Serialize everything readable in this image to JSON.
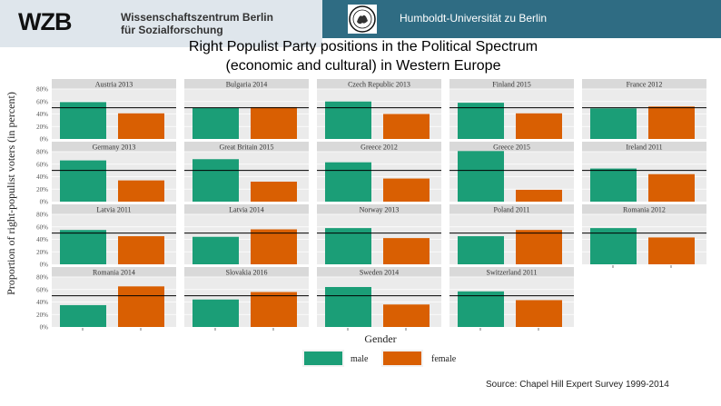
{
  "header": {
    "logo_text": "WZB",
    "institution_line1": "Wissenschaftszentrum Berlin",
    "institution_line2": "für Sozialforschung",
    "partner": "Humboldt-Universität zu Berlin"
  },
  "title": {
    "line1": "Right Populist Party positions in the Political Spectrum",
    "line2": "(economic and cultural) in Western Europe"
  },
  "source": "Source: Chapel Hill Expert Survey 1999-2014",
  "colors": {
    "male": "#1b9e77",
    "female": "#d95f02",
    "strip": "#d9d9d9",
    "panel": "#ebebeb"
  },
  "chart_data": {
    "type": "bar",
    "layout": "faceted grid",
    "xlabel": "Gender",
    "ylabel": "Proportion of right-populist voters (in percent)",
    "ylim": [
      0,
      80
    ],
    "yticks": [
      "0%",
      "20%",
      "40%",
      "60%",
      "80%"
    ],
    "legend": {
      "position": "bottom",
      "entries": [
        "male",
        "female"
      ]
    },
    "categories": [
      "male",
      "female"
    ],
    "panels": [
      {
        "title": "Austria 2013",
        "values": [
          59,
          41
        ],
        "ref": 50
      },
      {
        "title": "Bulgaria 2014",
        "values": [
          50,
          51
        ],
        "ref": 50
      },
      {
        "title": "Czech Republic 2013",
        "values": [
          60,
          40
        ],
        "ref": 50
      },
      {
        "title": "Finland 2015",
        "values": [
          58,
          41
        ],
        "ref": 50
      },
      {
        "title": "France 2012",
        "values": [
          49,
          52
        ],
        "ref": 50
      },
      {
        "title": "Germany 2013",
        "values": [
          66,
          34
        ],
        "ref": 50
      },
      {
        "title": "Great Britain 2015",
        "values": [
          68,
          32
        ],
        "ref": 50
      },
      {
        "title": "Greece 2012",
        "values": [
          63,
          37
        ],
        "ref": 50
      },
      {
        "title": "Greece 2015",
        "values": [
          81,
          19
        ],
        "ref": 50
      },
      {
        "title": "Ireland 2011",
        "values": [
          53,
          44
        ],
        "ref": 50
      },
      {
        "title": "Latvia 2011",
        "values": [
          55,
          45
        ],
        "ref": 50
      },
      {
        "title": "Latvia 2014",
        "values": [
          44,
          56
        ],
        "ref": 50
      },
      {
        "title": "Norway 2013",
        "values": [
          58,
          42
        ],
        "ref": 50
      },
      {
        "title": "Poland 2011",
        "values": [
          45,
          55
        ],
        "ref": 50
      },
      {
        "title": "Romania 2012",
        "values": [
          58,
          43
        ],
        "ref": 50
      },
      {
        "title": "Romania 2014",
        "values": [
          35,
          65
        ],
        "ref": 50
      },
      {
        "title": "Slovakia 2016",
        "values": [
          44,
          56
        ],
        "ref": 50
      },
      {
        "title": "Sweden 2014",
        "values": [
          64,
          36
        ],
        "ref": 50
      },
      {
        "title": "Switzerland 2011",
        "values": [
          57,
          43
        ],
        "ref": 50
      }
    ]
  }
}
